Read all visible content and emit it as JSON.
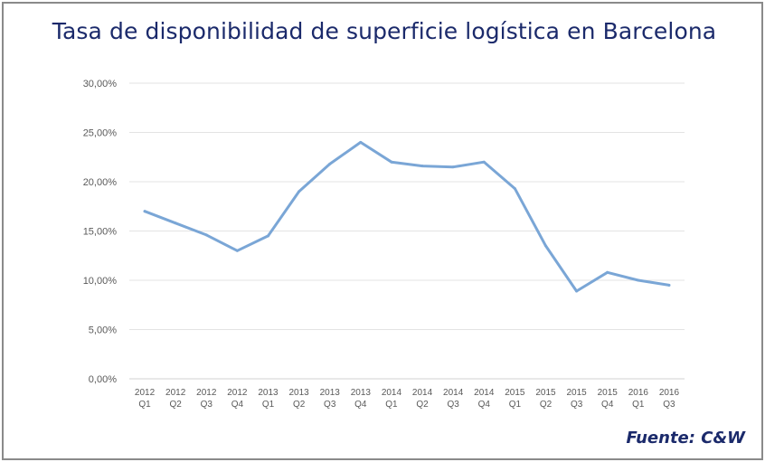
{
  "chart_data": {
    "type": "line",
    "title": "Tasa de disponibilidad de superficie logística en Barcelona",
    "source": "Fuente: C&W",
    "categories": [
      [
        "2012",
        "Q1"
      ],
      [
        "2012",
        "Q2"
      ],
      [
        "2012",
        "Q3"
      ],
      [
        "2012",
        "Q4"
      ],
      [
        "2013",
        "Q1"
      ],
      [
        "2013",
        "Q2"
      ],
      [
        "2013",
        "Q3"
      ],
      [
        "2013",
        "Q4"
      ],
      [
        "2014",
        "Q1"
      ],
      [
        "2014",
        "Q2"
      ],
      [
        "2014",
        "Q3"
      ],
      [
        "2014",
        "Q4"
      ],
      [
        "2015",
        "Q1"
      ],
      [
        "2015",
        "Q2"
      ],
      [
        "2015",
        "Q3"
      ],
      [
        "2015",
        "Q4"
      ],
      [
        "2016",
        "Q1"
      ],
      [
        "2016",
        "Q3"
      ]
    ],
    "values": [
      17.0,
      15.8,
      14.6,
      13.0,
      14.5,
      19.0,
      21.8,
      24.0,
      22.0,
      21.6,
      21.5,
      22.0,
      19.3,
      13.5,
      8.9,
      10.8,
      10.0,
      9.5
    ],
    "y_ticks": [
      "0,00%",
      "5,00%",
      "10,00%",
      "15,00%",
      "20,00%",
      "25,00%",
      "30,00%"
    ],
    "ylim": [
      0,
      30
    ],
    "grid": true,
    "legend": "none",
    "line_color": "#7aa6d6"
  }
}
